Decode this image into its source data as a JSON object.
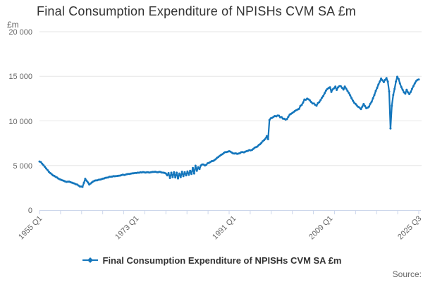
{
  "title": "Final Consumption Expenditure of NPISHs CVM SA £m",
  "footer": {
    "source_label": "Source:"
  },
  "colors": {
    "series_line": "#1476bc",
    "title_text": "#333333",
    "axis_text": "#666666",
    "gridline": "#e6e6e6",
    "axis_line": "#ccd6eb",
    "background": "#ffffff"
  },
  "chart_data": {
    "type": "line",
    "title": "Final Consumption Expenditure of NPISHs CVM SA £m",
    "xlabel": "",
    "ylabel": "£m",
    "ylim": [
      0,
      20000
    ],
    "grid": true,
    "legend_position": "bottom-center",
    "y_ticks": [
      {
        "value": 0,
        "label": "0"
      },
      {
        "value": 5000,
        "label": "5 000"
      },
      {
        "value": 10000,
        "label": "10 000"
      },
      {
        "value": 15000,
        "label": "15 000"
      },
      {
        "value": 20000,
        "label": "20 000"
      }
    ],
    "x_axis": {
      "start_label": "1955 Q1",
      "end_label": "2025 Q3",
      "quarters_total": 283,
      "minor_tick_count": 19,
      "labels": [
        {
          "label": "1955 Q1",
          "quarter": 0
        },
        {
          "label": "1973 Q1",
          "quarter": 72
        },
        {
          "label": "1991 Q1",
          "quarter": 144
        },
        {
          "label": "2009 Q1",
          "quarter": 216
        },
        {
          "label": "2025 Q3",
          "quarter": 282
        }
      ]
    },
    "series": [
      {
        "name": "Final Consumption Expenditure of NPISHs CVM SA £m",
        "unit": "£m",
        "color": "#1476bc",
        "marker": "diamond",
        "frequency": "quarterly",
        "keypoints_format": "[quarter_index_from_1955Q1, value_in_million_gbp]",
        "keypoints": [
          [
            0,
            5450
          ],
          [
            1,
            5380
          ],
          [
            2,
            5200
          ],
          [
            4,
            4850
          ],
          [
            6,
            4480
          ],
          [
            8,
            4150
          ],
          [
            10,
            3900
          ],
          [
            12,
            3720
          ],
          [
            14,
            3540
          ],
          [
            16,
            3400
          ],
          [
            18,
            3290
          ],
          [
            20,
            3160
          ],
          [
            22,
            3190
          ],
          [
            24,
            3080
          ],
          [
            26,
            2980
          ],
          [
            28,
            2870
          ],
          [
            30,
            2650
          ],
          [
            32,
            2600
          ],
          [
            34,
            3510
          ],
          [
            35,
            3300
          ],
          [
            37,
            2860
          ],
          [
            39,
            3110
          ],
          [
            41,
            3300
          ],
          [
            45,
            3420
          ],
          [
            49,
            3620
          ],
          [
            53,
            3740
          ],
          [
            57,
            3820
          ],
          [
            61,
            3920
          ],
          [
            65,
            4020
          ],
          [
            69,
            4120
          ],
          [
            73,
            4200
          ],
          [
            77,
            4260
          ],
          [
            81,
            4230
          ],
          [
            84,
            4280
          ],
          [
            86,
            4300
          ],
          [
            88,
            4240
          ],
          [
            90,
            4270
          ],
          [
            92,
            4200
          ],
          [
            94,
            4100
          ],
          [
            95,
            3900
          ],
          [
            96,
            4150
          ],
          [
            97,
            3600
          ],
          [
            98,
            4200
          ],
          [
            99,
            3700
          ],
          [
            100,
            4250
          ],
          [
            101,
            3650
          ],
          [
            102,
            4200
          ],
          [
            103,
            3550
          ],
          [
            104,
            4100
          ],
          [
            105,
            3700
          ],
          [
            106,
            4300
          ],
          [
            107,
            3800
          ],
          [
            108,
            4250
          ],
          [
            109,
            3900
          ],
          [
            110,
            4330
          ],
          [
            111,
            3950
          ],
          [
            112,
            4400
          ],
          [
            113,
            4050
          ],
          [
            114,
            4720
          ],
          [
            115,
            4100
          ],
          [
            116,
            4980
          ],
          [
            117,
            4400
          ],
          [
            118,
            4800
          ],
          [
            119,
            4600
          ],
          [
            120,
            5000
          ],
          [
            121,
            5120
          ],
          [
            123,
            5000
          ],
          [
            125,
            5250
          ],
          [
            127,
            5380
          ],
          [
            129,
            5500
          ],
          [
            131,
            5700
          ],
          [
            133,
            5950
          ],
          [
            135,
            6200
          ],
          [
            137,
            6400
          ],
          [
            139,
            6500
          ],
          [
            141,
            6600
          ],
          [
            143,
            6450
          ],
          [
            145,
            6350
          ],
          [
            147,
            6300
          ],
          [
            149,
            6380
          ],
          [
            151,
            6500
          ],
          [
            153,
            6550
          ],
          [
            155,
            6650
          ],
          [
            157,
            6700
          ],
          [
            159,
            6850
          ],
          [
            161,
            7050
          ],
          [
            163,
            7300
          ],
          [
            165,
            7550
          ],
          [
            167,
            7850
          ],
          [
            168,
            8000
          ],
          [
            169,
            8300
          ],
          [
            170,
            7950
          ],
          [
            171,
            10100
          ],
          [
            173,
            10350
          ],
          [
            175,
            10550
          ],
          [
            177,
            10600
          ],
          [
            179,
            10400
          ],
          [
            181,
            10250
          ],
          [
            183,
            10150
          ],
          [
            185,
            10450
          ],
          [
            187,
            10800
          ],
          [
            189,
            11000
          ],
          [
            191,
            11200
          ],
          [
            193,
            11350
          ],
          [
            195,
            11800
          ],
          [
            197,
            12400
          ],
          [
            199,
            12500
          ],
          [
            201,
            12300
          ],
          [
            203,
            11950
          ],
          [
            205,
            11800
          ],
          [
            206,
            11700
          ],
          [
            208,
            12100
          ],
          [
            210,
            12600
          ],
          [
            212,
            13100
          ],
          [
            213,
            13400
          ],
          [
            215,
            13700
          ],
          [
            216,
            13780
          ],
          [
            217,
            13250
          ],
          [
            219,
            13650
          ],
          [
            220,
            13850
          ],
          [
            221,
            13480
          ],
          [
            222,
            13760
          ],
          [
            224,
            13900
          ],
          [
            226,
            13520
          ],
          [
            227,
            13850
          ],
          [
            228,
            13620
          ],
          [
            230,
            13150
          ],
          [
            232,
            12550
          ],
          [
            234,
            12050
          ],
          [
            236,
            11720
          ],
          [
            238,
            11480
          ],
          [
            239,
            11320
          ],
          [
            240,
            11600
          ],
          [
            241,
            11900
          ],
          [
            243,
            11420
          ],
          [
            245,
            11600
          ],
          [
            247,
            12150
          ],
          [
            249,
            12900
          ],
          [
            251,
            13700
          ],
          [
            253,
            14400
          ],
          [
            254,
            14750
          ],
          [
            255,
            14550
          ],
          [
            256,
            14350
          ],
          [
            257,
            14600
          ],
          [
            258,
            14800
          ],
          [
            259,
            14400
          ],
          [
            260,
            13300
          ],
          [
            261,
            9150
          ],
          [
            262,
            11700
          ],
          [
            263,
            12900
          ],
          [
            264,
            13600
          ],
          [
            265,
            14400
          ],
          [
            266,
            14950
          ],
          [
            267,
            14700
          ],
          [
            268,
            14200
          ],
          [
            269,
            13800
          ],
          [
            270,
            13500
          ],
          [
            271,
            13200
          ],
          [
            272,
            13050
          ],
          [
            273,
            13500
          ],
          [
            274,
            13200
          ],
          [
            275,
            13000
          ],
          [
            276,
            13250
          ],
          [
            277,
            13600
          ],
          [
            278,
            13900
          ],
          [
            279,
            14200
          ],
          [
            280,
            14450
          ],
          [
            281,
            14600
          ],
          [
            282,
            14650
          ]
        ]
      }
    ]
  }
}
